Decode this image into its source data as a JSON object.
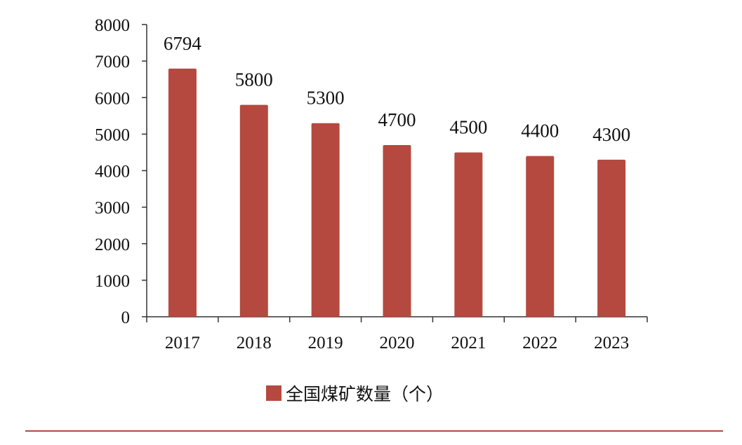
{
  "chart_data": {
    "type": "bar",
    "categories": [
      "2017",
      "2018",
      "2019",
      "2020",
      "2021",
      "2022",
      "2023"
    ],
    "series": [
      {
        "name": "全国煤矿数量（个）",
        "values": [
          6794,
          5800,
          5300,
          4700,
          4500,
          4400,
          4300
        ],
        "color": "#B5493F"
      }
    ],
    "data_labels": [
      "6794",
      "5800",
      "5300",
      "4700",
      "4500",
      "4400",
      "4300"
    ],
    "ylim": [
      0,
      8000
    ],
    "yticks": [
      0,
      1000,
      2000,
      3000,
      4000,
      5000,
      6000,
      7000,
      8000
    ],
    "ytick_labels": [
      "0",
      "1000",
      "2000",
      "3000",
      "4000",
      "5000",
      "6000",
      "7000",
      "8000"
    ],
    "grid": false,
    "legend_position": "bottom-center",
    "footer_rule_color": "#B5493F"
  }
}
